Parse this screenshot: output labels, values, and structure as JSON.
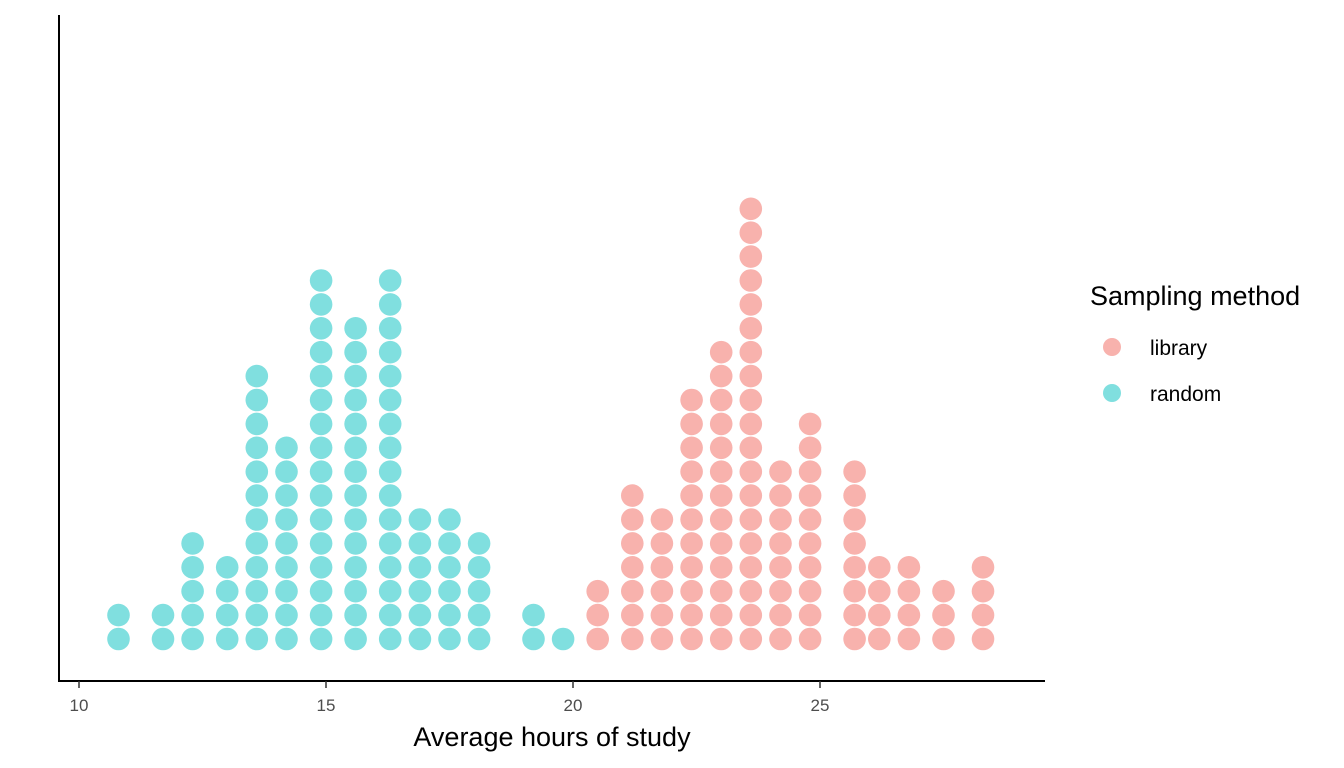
{
  "chart_data": {
    "type": "dotplot",
    "xlabel": "Average hours of study",
    "ylabel": "",
    "xlim": [
      9.9,
      29.3
    ],
    "x_ticks": [
      10,
      15,
      20,
      25
    ],
    "x_tick_labels": [
      "10",
      "15",
      "20",
      "25"
    ],
    "grid": false,
    "legend": {
      "title": "Sampling method",
      "position": "right"
    },
    "series": [
      {
        "name": "library",
        "color": "#F8B2AD",
        "bins": [
          {
            "x": 20.5,
            "count": 3
          },
          {
            "x": 21.2,
            "count": 7
          },
          {
            "x": 21.8,
            "count": 6
          },
          {
            "x": 22.4,
            "count": 11
          },
          {
            "x": 23.0,
            "count": 13
          },
          {
            "x": 23.6,
            "count": 19
          },
          {
            "x": 24.2,
            "count": 8
          },
          {
            "x": 24.8,
            "count": 10
          },
          {
            "x": 25.7,
            "count": 8
          },
          {
            "x": 26.2,
            "count": 4
          },
          {
            "x": 26.8,
            "count": 4
          },
          {
            "x": 27.5,
            "count": 3
          },
          {
            "x": 28.3,
            "count": 4
          }
        ]
      },
      {
        "name": "random",
        "color": "#80DFDF",
        "bins": [
          {
            "x": 10.8,
            "count": 2
          },
          {
            "x": 11.7,
            "count": 2
          },
          {
            "x": 12.3,
            "count": 5
          },
          {
            "x": 13.0,
            "count": 4
          },
          {
            "x": 13.6,
            "count": 12
          },
          {
            "x": 14.2,
            "count": 9
          },
          {
            "x": 14.9,
            "count": 16
          },
          {
            "x": 15.6,
            "count": 14
          },
          {
            "x": 16.3,
            "count": 16
          },
          {
            "x": 16.9,
            "count": 6
          },
          {
            "x": 17.5,
            "count": 6
          },
          {
            "x": 18.1,
            "count": 5
          },
          {
            "x": 19.2,
            "count": 2
          },
          {
            "x": 19.8,
            "count": 1
          }
        ]
      }
    ]
  }
}
